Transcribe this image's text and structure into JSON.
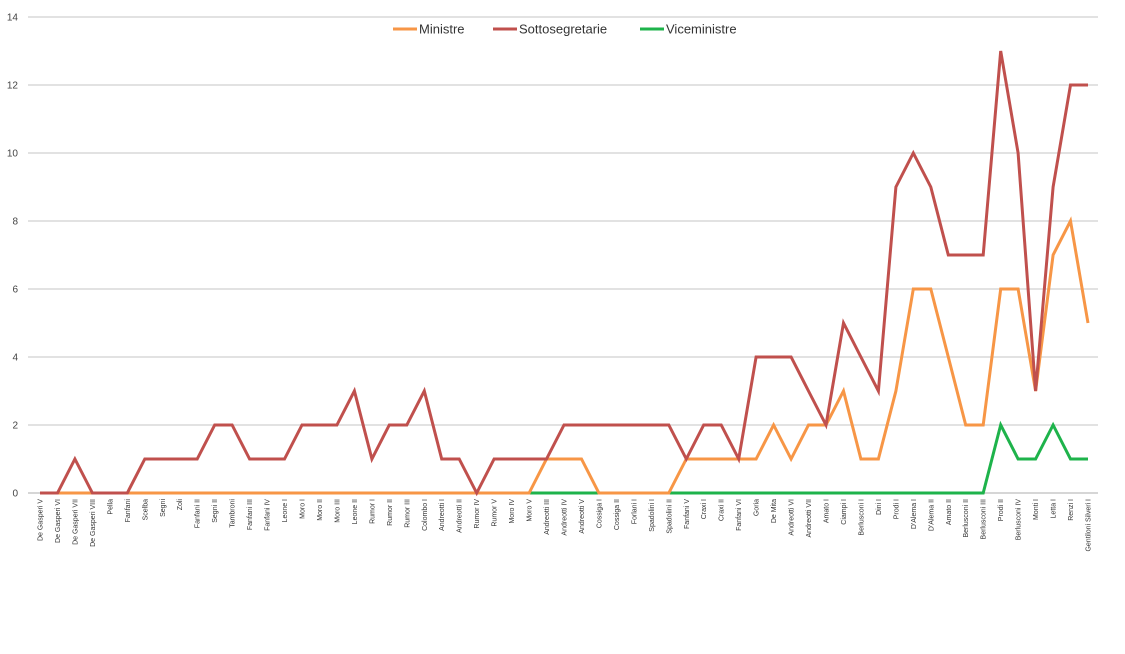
{
  "chart_data": {
    "type": "line",
    "title": "",
    "xlabel": "",
    "ylabel": "",
    "ylim": [
      0,
      14
    ],
    "yticks": [
      0,
      2,
      4,
      6,
      8,
      10,
      12,
      14
    ],
    "grid": true,
    "legend": "top-center",
    "categories": [
      "De Gasperi V",
      "De Gasperi VI",
      "De Gasperi VII",
      "De Gasperi VIII",
      "Pella",
      "Fanfani",
      "Scelba",
      "Segni",
      "Zoli",
      "Fanfani II",
      "Segni II",
      "Tambroni",
      "Fanfani III",
      "Fanfani IV",
      "Leone I",
      "Moro I",
      "Moro II",
      "Moro III",
      "Leone II",
      "Rumor I",
      "Rumor II",
      "Rumor III",
      "Colombo I",
      "Andreotti I",
      "Andreotti II",
      "Rumor IV",
      "Rumor V",
      "Moro IV",
      "Moro V",
      "Andreotti III",
      "Andreotti IV",
      "Andreotti V",
      "Cossiga I",
      "Cossiga II",
      "Forlani I",
      "Spadolini I",
      "Spadolini II",
      "Fanfani V",
      "Craxi I",
      "Craxi II",
      "Fanfani VI",
      "Goria",
      "De Mita",
      "Andreotti VI",
      "Andreotti VII",
      "Amato I",
      "Ciampi I",
      "Berlusconi I",
      "Dini I",
      "Prodi I",
      "D'Alema I",
      "D'Alema II",
      "Amato II",
      "Berlusconi II",
      "Berlusconi III",
      "Prodi II",
      "Berlusconi IV",
      "Monti I",
      "Letta I",
      "Renzi I",
      "Gentiloni Silveri I"
    ],
    "series": [
      {
        "name": "Ministre",
        "color": "#f79646",
        "values": [
          0,
          0,
          0,
          0,
          0,
          0,
          0,
          0,
          0,
          0,
          0,
          0,
          0,
          0,
          0,
          0,
          0,
          0,
          0,
          0,
          0,
          0,
          0,
          0,
          0,
          0,
          0,
          0,
          0,
          1,
          1,
          1,
          0,
          0,
          0,
          0,
          0,
          1,
          1,
          1,
          1,
          1,
          2,
          1,
          2,
          2,
          3,
          1,
          1,
          3,
          6,
          6,
          4,
          2,
          2,
          6,
          6,
          3,
          7,
          8,
          5
        ]
      },
      {
        "name": "Sottosegretarie",
        "color": "#c0504d",
        "values": [
          0,
          0,
          1,
          0,
          0,
          0,
          1,
          1,
          1,
          1,
          2,
          2,
          1,
          1,
          1,
          2,
          2,
          2,
          3,
          1,
          2,
          2,
          3,
          1,
          1,
          0,
          1,
          1,
          1,
          1,
          2,
          2,
          2,
          2,
          2,
          2,
          2,
          1,
          2,
          2,
          1,
          4,
          4,
          4,
          3,
          2,
          5,
          4,
          3,
          9,
          10,
          9,
          7,
          7,
          7,
          13,
          10,
          3,
          9,
          12,
          12
        ]
      },
      {
        "name": "Viceministre",
        "color": "#1eb34b",
        "values": [
          0,
          0,
          0,
          0,
          0,
          0,
          0,
          0,
          0,
          0,
          0,
          0,
          0,
          0,
          0,
          0,
          0,
          0,
          0,
          0,
          0,
          0,
          0,
          0,
          0,
          0,
          0,
          0,
          0,
          0,
          0,
          0,
          0,
          0,
          0,
          0,
          0,
          0,
          0,
          0,
          0,
          0,
          0,
          0,
          0,
          0,
          0,
          0,
          0,
          0,
          0,
          0,
          0,
          0,
          0,
          2,
          1,
          1,
          2,
          1,
          1
        ]
      }
    ]
  }
}
